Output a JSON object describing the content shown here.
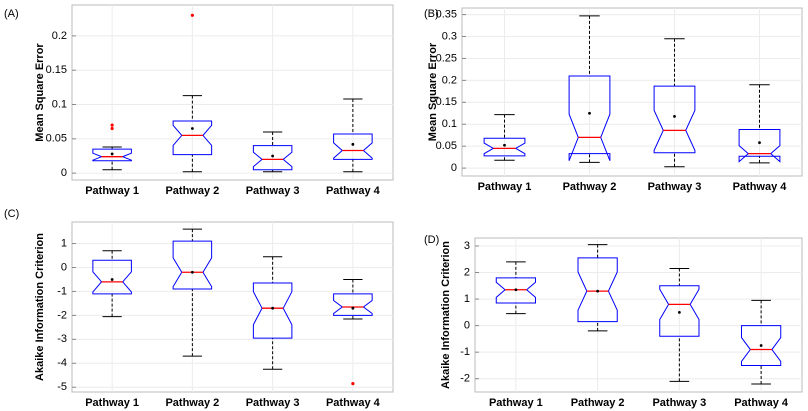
{
  "chart_data": [
    {
      "type": "box",
      "panel_label": "(A)",
      "ylabel": "Mean Square Error",
      "categories": [
        "Pathway 1",
        "Pathway 2",
        "Pathway 3",
        "Pathway 4"
      ],
      "boxes": [
        {
          "low": 0.005,
          "q1": 0.018,
          "median": 0.024,
          "q3": 0.035,
          "high": 0.038,
          "mean": 0.028,
          "outliers": [
            0.065,
            0.07
          ]
        },
        {
          "low": 0.002,
          "q1": 0.027,
          "median": 0.055,
          "q3": 0.076,
          "high": 0.113,
          "mean": 0.065,
          "outliers": [
            0.23
          ]
        },
        {
          "low": 0.002,
          "q1": 0.005,
          "median": 0.02,
          "q3": 0.04,
          "high": 0.06,
          "mean": 0.025,
          "outliers": []
        },
        {
          "low": 0.002,
          "q1": 0.02,
          "median": 0.033,
          "q3": 0.057,
          "high": 0.108,
          "mean": 0.042,
          "outliers": []
        }
      ],
      "ylim": [
        -0.01,
        0.245
      ],
      "yticks": [
        0,
        0.05,
        0.1,
        0.15,
        0.2
      ],
      "box_color": "#0000ff",
      "median_color": "#ff0000",
      "whisker_color": "#000000",
      "grid": true
    },
    {
      "type": "box",
      "panel_label": "(B)",
      "ylabel": "Mean Square Error",
      "categories": [
        "Pathway 1",
        "Pathway 2",
        "Pathway 3",
        "Pathway 4"
      ],
      "boxes": [
        {
          "low": 0.018,
          "q1": 0.028,
          "median": 0.045,
          "q3": 0.068,
          "high": 0.122,
          "mean": 0.052,
          "outliers": []
        },
        {
          "low": 0.013,
          "q1": 0.033,
          "median": 0.07,
          "q3": 0.21,
          "high": 0.347,
          "mean": 0.125,
          "outliers": []
        },
        {
          "low": 0.003,
          "q1": 0.035,
          "median": 0.086,
          "q3": 0.187,
          "high": 0.295,
          "mean": 0.118,
          "outliers": []
        },
        {
          "low": 0.012,
          "q1": 0.027,
          "median": 0.033,
          "q3": 0.088,
          "high": 0.19,
          "mean": 0.058,
          "outliers": []
        }
      ],
      "ylim": [
        -0.018,
        0.365
      ],
      "yticks": [
        0,
        0.05,
        0.1,
        0.15,
        0.2,
        0.25,
        0.3,
        0.35
      ],
      "box_color": "#0000ff",
      "median_color": "#ff0000",
      "whisker_color": "#000000",
      "grid": true
    },
    {
      "type": "box",
      "panel_label": "(C)",
      "ylabel": "Akaike Information Criterion",
      "categories": [
        "Pathway 1",
        "Pathway 2",
        "Pathway 3",
        "Pathway 4"
      ],
      "boxes": [
        {
          "low": -2.05,
          "q1": -1.1,
          "median": -0.6,
          "q3": 0.3,
          "high": 0.7,
          "mean": -0.5,
          "outliers": []
        },
        {
          "low": -3.7,
          "q1": -0.9,
          "median": -0.2,
          "q3": 1.1,
          "high": 1.6,
          "mean": -0.2,
          "outliers": []
        },
        {
          "low": -4.25,
          "q1": -2.95,
          "median": -1.7,
          "q3": -0.65,
          "high": 0.45,
          "mean": -1.7,
          "outliers": []
        },
        {
          "low": -2.15,
          "q1": -2.0,
          "median": -1.65,
          "q3": -1.1,
          "high": -0.5,
          "mean": -1.7,
          "outliers": [
            -4.85
          ]
        }
      ],
      "ylim": [
        -5.2,
        1.9
      ],
      "yticks": [
        -5,
        -4,
        -3,
        -2,
        -1,
        0,
        1
      ],
      "box_color": "#0000ff",
      "median_color": "#ff0000",
      "whisker_color": "#000000",
      "grid": true
    },
    {
      "type": "box",
      "panel_label": "(D)",
      "ylabel": "Akaike Information Criterion",
      "categories": [
        "Pathway 1",
        "Pathway 2",
        "Pathway 3",
        "Pathway 4"
      ],
      "boxes": [
        {
          "low": 0.45,
          "q1": 0.85,
          "median": 1.35,
          "q3": 1.8,
          "high": 2.4,
          "mean": 1.35,
          "outliers": []
        },
        {
          "low": -0.2,
          "q1": 0.15,
          "median": 1.3,
          "q3": 2.55,
          "high": 3.05,
          "mean": 1.3,
          "outliers": []
        },
        {
          "low": -2.1,
          "q1": -0.4,
          "median": 0.8,
          "q3": 1.5,
          "high": 2.15,
          "mean": 0.5,
          "outliers": []
        },
        {
          "low": -2.2,
          "q1": -1.5,
          "median": -0.9,
          "q3": 0,
          "high": 0.95,
          "mean": -0.75,
          "outliers": []
        }
      ],
      "ylim": [
        -2.5,
        3.3
      ],
      "yticks": [
        -2,
        -1,
        0,
        1,
        2,
        3
      ],
      "box_color": "#0000ff",
      "median_color": "#ff0000",
      "whisker_color": "#000000",
      "grid": true
    }
  ]
}
